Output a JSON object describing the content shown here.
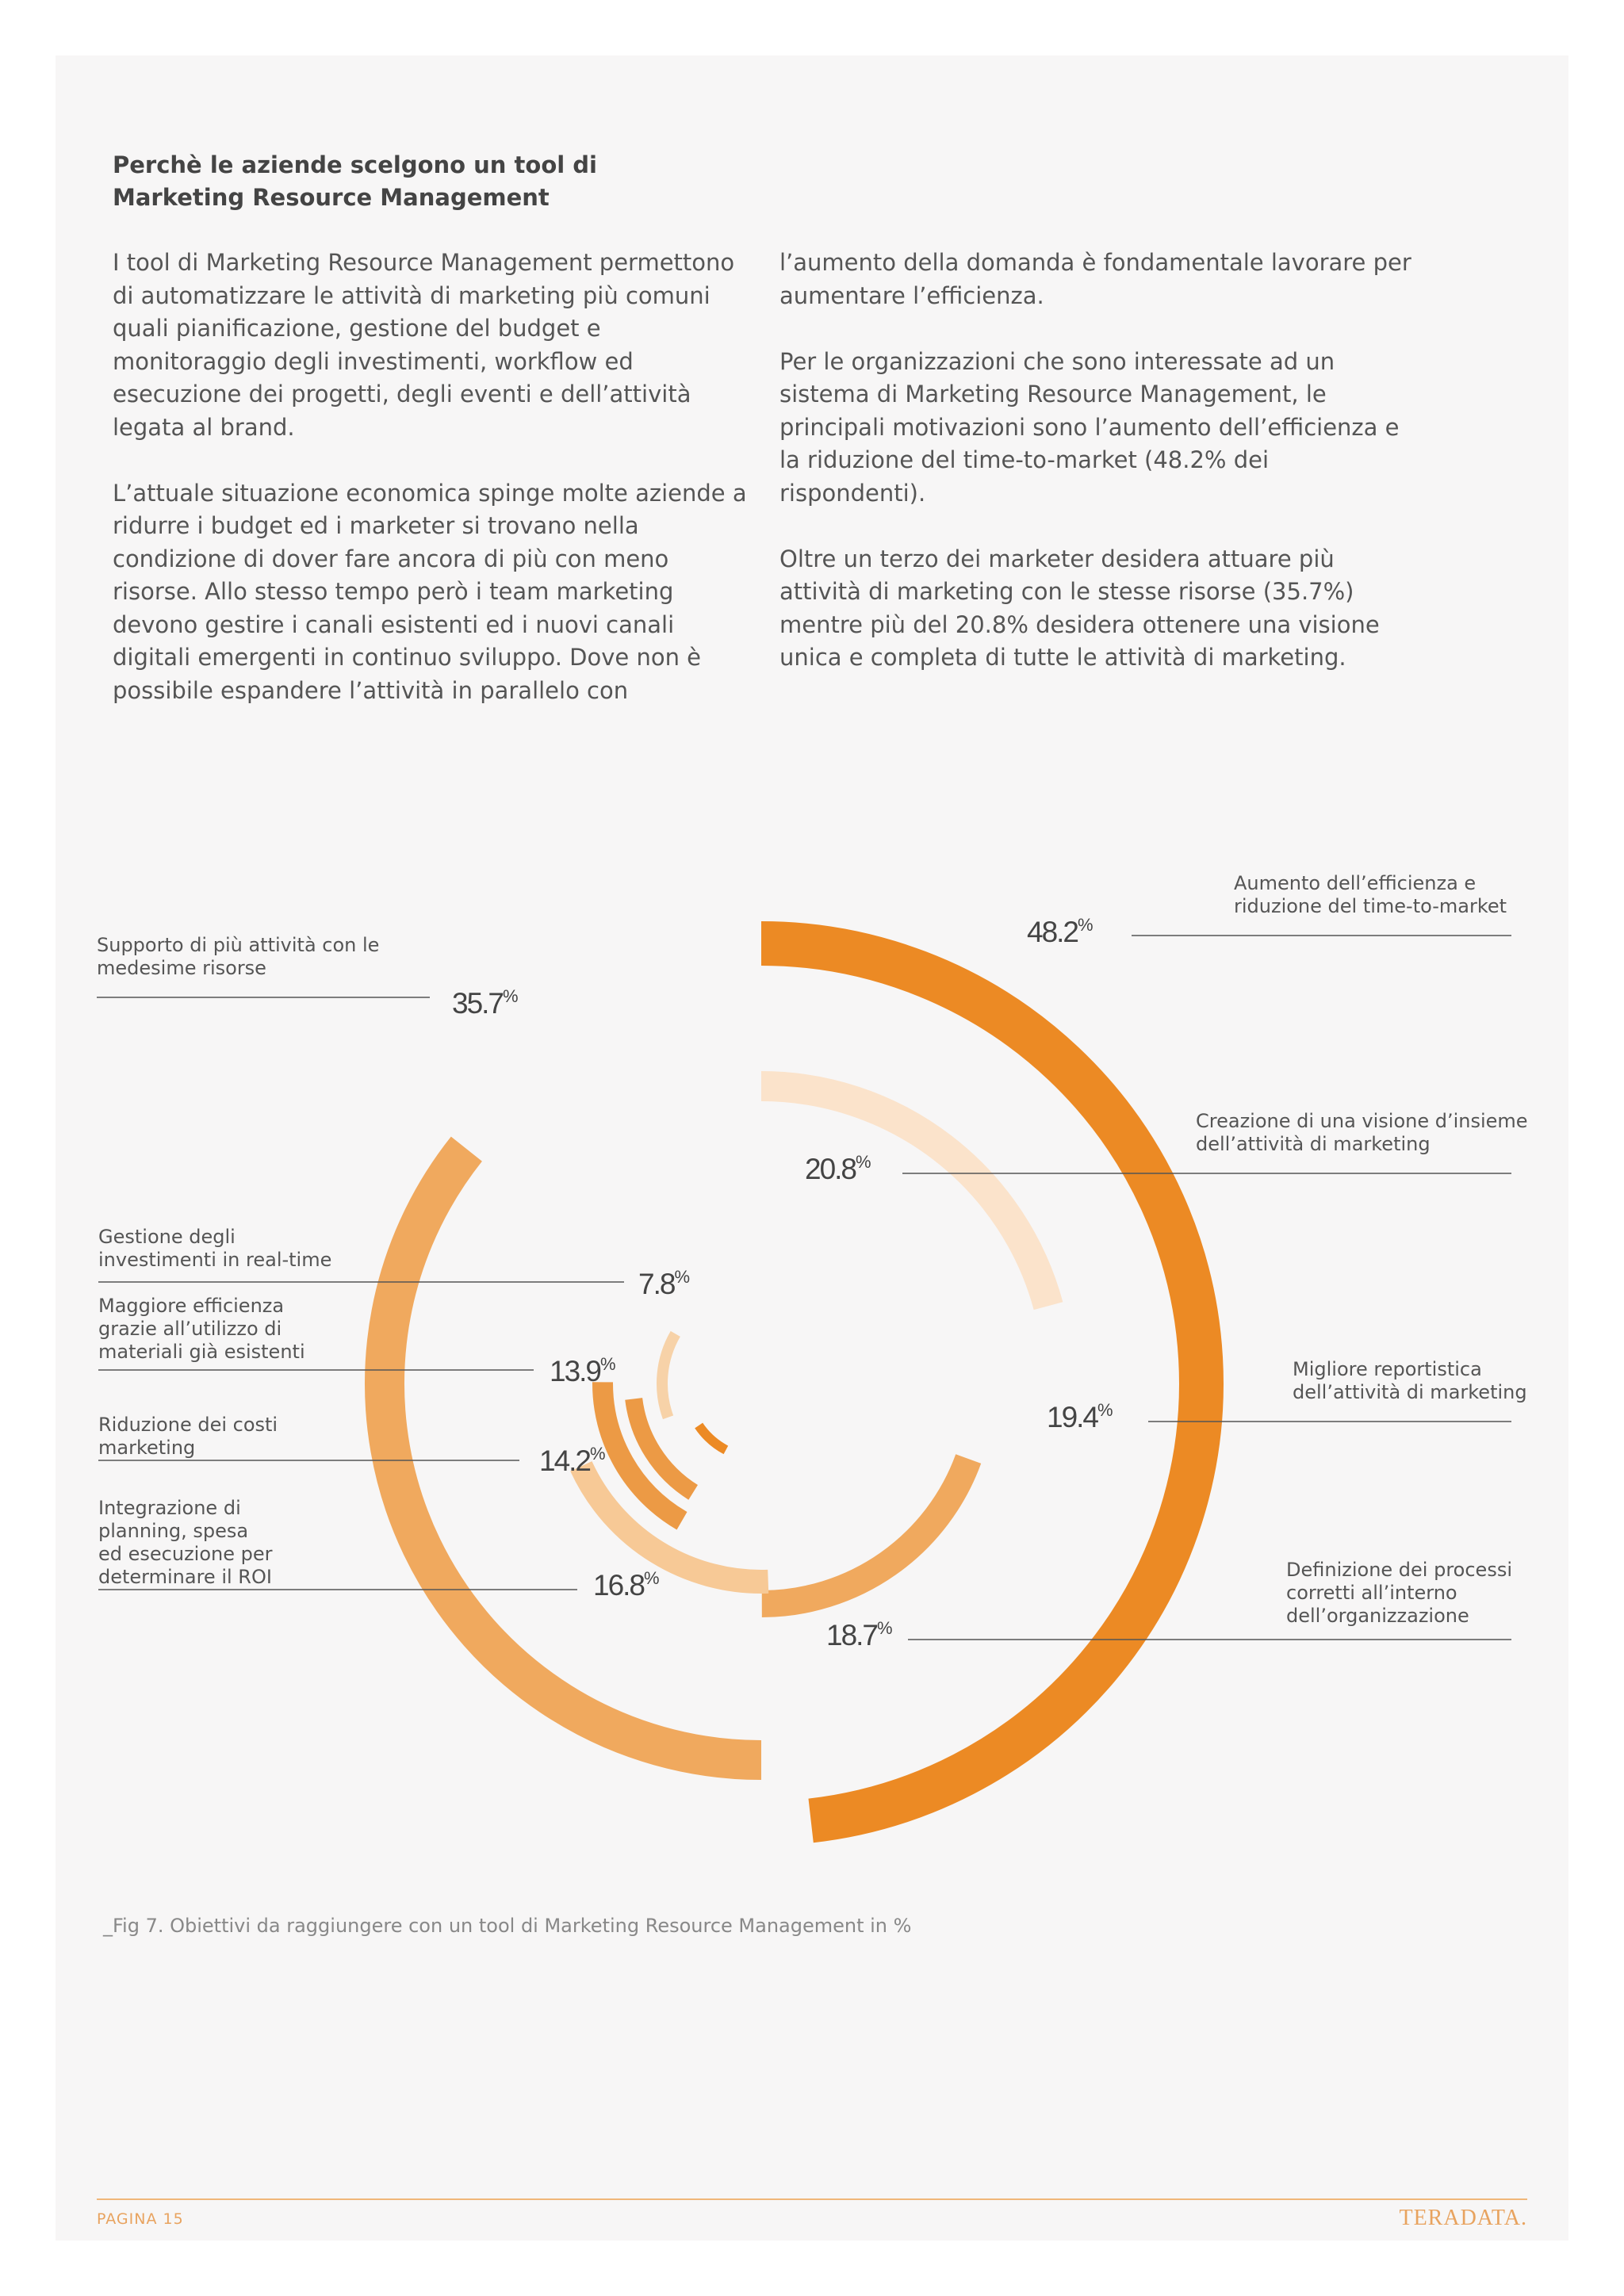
{
  "heading": {
    "line1": "Perchè le aziende scelgono un tool di",
    "line2": "Marketing Resource Management"
  },
  "body_left": [
    "I tool di Marketing Resource Management permettono di automatizzare le attività di marketing più comuni quali pianificazione, gestione del budget e monitoraggio degli investimenti, workflow ed esecuzione dei progetti, degli eventi e dell’attività legata al brand.",
    "L’attuale situazione economica spinge molte aziende a ridurre i budget ed i marketer si trovano nella condizione di dover fare ancora di più con meno risorse. Allo stesso tempo però i team marketing devono gestire i canali esistenti ed i nuovi canali digitali emergenti in continuo sviluppo. Dove non è possibile espandere l’attività in parallelo con"
  ],
  "body_right": [
    "l’aumento della domanda è fondamentale lavorare per aumentare l’efficienza.",
    "Per le organizzazioni che sono interessate ad un sistema di Marketing Resource Management, le principali motivazioni sono l’aumento dell’efficienza e la riduzione del time-to-market (48.2% dei rispondenti).",
    "Oltre un terzo dei marketer desidera attuare più attività di marketing con le stesse risorse (35.7%) mentre più del 20.8% desidera ottenere una visione unica e completa di tutte le attività di marketing."
  ],
  "chart_data": {
    "type": "radial-bar",
    "unit_symbol": "%",
    "series": [
      {
        "label_lines": [
          "Aumento dell’efficienza e",
          "riduzione del time-to-market"
        ],
        "value": 48.2,
        "value_text": "48.2",
        "color": "#ec8a24"
      },
      {
        "label_lines": [
          "Supporto di più attività con le",
          "medesime risorse"
        ],
        "value": 35.7,
        "value_text": "35.7",
        "color": "#f0a95e"
      },
      {
        "label_lines": [
          "Creazione di una visione d’insieme",
          "dell’attività di marketing"
        ],
        "value": 20.8,
        "value_text": "20.8",
        "color": "#fbe3cb"
      },
      {
        "label_lines": [
          "Migliore reportistica",
          "dell’attività di marketing"
        ],
        "value": 19.4,
        "value_text": "19.4",
        "color": "#f0a95e"
      },
      {
        "label_lines": [
          "Definizione dei processi",
          "corretti all’interno",
          "dell’organizzazione"
        ],
        "value": 18.7,
        "value_text": "18.7",
        "color": "#f7c996"
      },
      {
        "label_lines": [
          "Integrazione di",
          "planning, spesa",
          "ed esecuzione per",
          "determinare il ROI"
        ],
        "value": 16.8,
        "value_text": "16.8",
        "color": "#ec9a45"
      },
      {
        "label_lines": [
          "Riduzione dei costi",
          "marketing"
        ],
        "value": 14.2,
        "value_text": "14.2",
        "color": "#ec9a45"
      },
      {
        "label_lines": [
          "Maggiore efficienza",
          "grazie all’utilizzo di",
          "materiali già esistenti"
        ],
        "value": 13.9,
        "value_text": "13.9",
        "color": "#f7d2a8"
      },
      {
        "label_lines": [
          "Gestione degli",
          "investimenti in real-time"
        ],
        "value": 7.8,
        "value_text": "7.8",
        "color": "#ec8a24"
      }
    ]
  },
  "caption": "_Fig 7. Obiettivi da raggiungere con un tool di Marketing Resource Management in %",
  "footer": {
    "page_label": "PAGINA 15",
    "logo": "TERADATA."
  }
}
